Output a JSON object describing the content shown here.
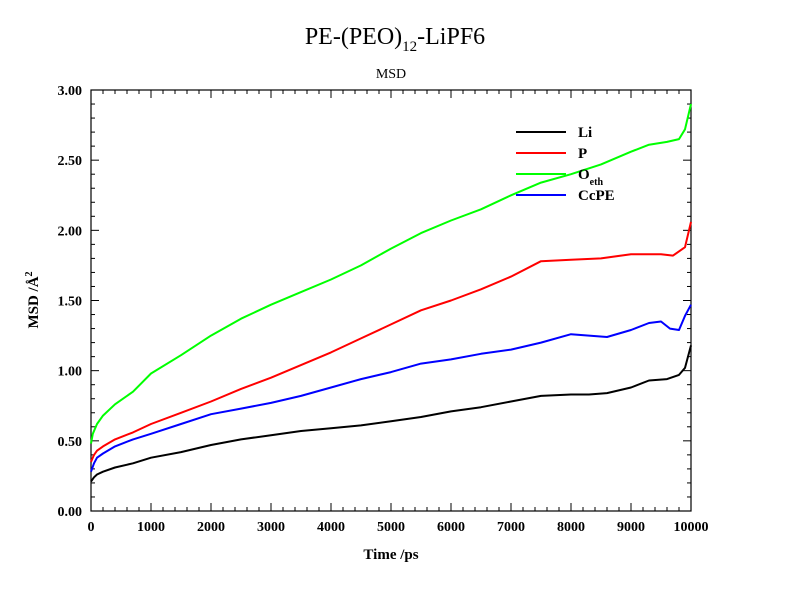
{
  "chart_data": {
    "type": "line",
    "title": {
      "main": "PE-(PEO)",
      "sub": "12",
      "tail": "-LiPF6"
    },
    "subtitle": "MSD",
    "xlabel": "Time /ps",
    "ylabel": {
      "main": "MSD /Å",
      "sup": "2"
    },
    "xlim": [
      0,
      10000
    ],
    "ylim": [
      0,
      3.0
    ],
    "xticks": [
      0,
      1000,
      2000,
      3000,
      4000,
      5000,
      6000,
      7000,
      8000,
      9000,
      10000
    ],
    "xtick_labels": [
      "0",
      "1000",
      "2000",
      "3000",
      "4000",
      "5000",
      "6000",
      "7000",
      "8000",
      "9000",
      "10000"
    ],
    "yticks": [
      0,
      0.5,
      1.0,
      1.5,
      2.0,
      2.5,
      3.0
    ],
    "ytick_labels": [
      "0.00",
      "0.50",
      "1.00",
      "1.50",
      "2.00",
      "2.50",
      "3.00"
    ],
    "grid": false,
    "legend_position": "top-right",
    "series": [
      {
        "name": "Li",
        "name_sub": "",
        "color": "#000000",
        "x": [
          0,
          50,
          100,
          200,
          400,
          700,
          1000,
          1500,
          2000,
          2500,
          3000,
          3500,
          4000,
          4500,
          5000,
          5500,
          6000,
          6500,
          7000,
          7500,
          8000,
          8300,
          8600,
          9000,
          9300,
          9600,
          9800,
          9900,
          10000
        ],
        "y": [
          0.21,
          0.24,
          0.26,
          0.28,
          0.31,
          0.34,
          0.38,
          0.42,
          0.47,
          0.51,
          0.54,
          0.57,
          0.59,
          0.61,
          0.64,
          0.67,
          0.71,
          0.74,
          0.78,
          0.82,
          0.83,
          0.83,
          0.84,
          0.88,
          0.93,
          0.94,
          0.97,
          1.02,
          1.18
        ]
      },
      {
        "name": "P",
        "name_sub": "",
        "color": "#ff0000",
        "x": [
          0,
          50,
          100,
          200,
          400,
          700,
          1000,
          1500,
          2000,
          2500,
          3000,
          3500,
          4000,
          4500,
          5000,
          5500,
          6000,
          6500,
          7000,
          7500,
          8000,
          8500,
          9000,
          9500,
          9700,
          9900,
          10000
        ],
        "y": [
          0.35,
          0.4,
          0.43,
          0.46,
          0.51,
          0.56,
          0.62,
          0.7,
          0.78,
          0.87,
          0.95,
          1.04,
          1.13,
          1.23,
          1.33,
          1.43,
          1.5,
          1.58,
          1.67,
          1.78,
          1.79,
          1.8,
          1.83,
          1.83,
          1.82,
          1.88,
          2.06
        ]
      },
      {
        "name": "O",
        "name_sub": "eth",
        "color": "#00ff00",
        "x": [
          0,
          30,
          100,
          200,
          400,
          700,
          1000,
          1500,
          2000,
          2500,
          3000,
          3500,
          4000,
          4500,
          5000,
          5500,
          6000,
          6500,
          7000,
          7500,
          8000,
          8500,
          9000,
          9300,
          9600,
          9800,
          9900,
          10000
        ],
        "y": [
          0.48,
          0.55,
          0.62,
          0.68,
          0.76,
          0.85,
          0.98,
          1.11,
          1.25,
          1.37,
          1.47,
          1.56,
          1.65,
          1.75,
          1.87,
          1.98,
          2.07,
          2.15,
          2.25,
          2.34,
          2.4,
          2.47,
          2.56,
          2.61,
          2.63,
          2.65,
          2.72,
          2.9
        ]
      },
      {
        "name": "CcPE",
        "name_sub": "",
        "color": "#0000ff",
        "x": [
          0,
          50,
          100,
          200,
          400,
          700,
          1000,
          1500,
          2000,
          2500,
          3000,
          3500,
          4000,
          4500,
          5000,
          5500,
          6000,
          6500,
          7000,
          7500,
          8000,
          8300,
          8600,
          9000,
          9300,
          9500,
          9650,
          9800,
          9900,
          10000
        ],
        "y": [
          0.28,
          0.34,
          0.38,
          0.41,
          0.46,
          0.51,
          0.55,
          0.62,
          0.69,
          0.73,
          0.77,
          0.82,
          0.88,
          0.94,
          0.99,
          1.05,
          1.08,
          1.12,
          1.15,
          1.2,
          1.26,
          1.25,
          1.24,
          1.29,
          1.34,
          1.35,
          1.3,
          1.29,
          1.39,
          1.47
        ]
      }
    ]
  }
}
